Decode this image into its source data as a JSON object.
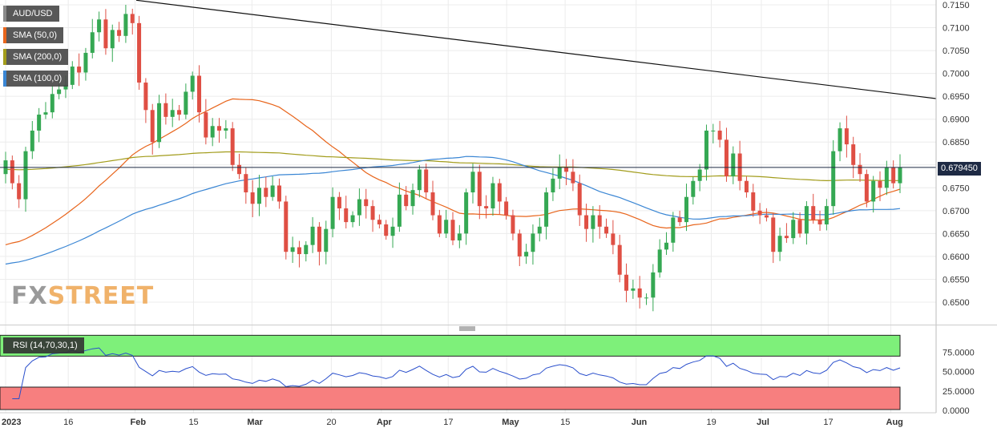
{
  "chart_data": [
    {
      "type": "candlestick",
      "pair": "AUD/USD",
      "ylim": [
        0.6455,
        0.7155
      ],
      "y_ticks": [
        "0.7150",
        "0.7100",
        "0.7050",
        "0.7000",
        "0.6950",
        "0.6900",
        "0.6850",
        "0.6800",
        "0.6750",
        "0.6700",
        "0.6650",
        "0.6600",
        "0.6550",
        "0.6500"
      ],
      "x_ticks": [
        {
          "label": "2023",
          "day": 0,
          "bold": true
        },
        {
          "label": "16",
          "day": 15,
          "bold": false
        },
        {
          "label": "Feb",
          "day": 31,
          "bold": true
        },
        {
          "label": "15",
          "day": 45,
          "bold": false
        },
        {
          "label": "Mar",
          "day": 59,
          "bold": true
        },
        {
          "label": "20",
          "day": 78,
          "bold": false
        },
        {
          "label": "Apr",
          "day": 90,
          "bold": true
        },
        {
          "label": "17",
          "day": 106,
          "bold": false
        },
        {
          "label": "May",
          "day": 120,
          "bold": true
        },
        {
          "label": "15",
          "day": 134,
          "bold": false
        },
        {
          "label": "Jun",
          "day": 151,
          "bold": true
        },
        {
          "label": "19",
          "day": 169,
          "bold": false
        },
        {
          "label": "Jul",
          "day": 181,
          "bold": true
        },
        {
          "label": "17",
          "day": 197,
          "bold": false
        },
        {
          "label": "Aug",
          "day": 212,
          "bold": true
        }
      ],
      "current_price": "0.679450",
      "current_price_value": 0.67945,
      "candles_close": [
        0.681,
        0.676,
        0.6725,
        0.683,
        0.6875,
        0.691,
        0.6915,
        0.6955,
        0.6965,
        0.6975,
        0.7015,
        0.7002,
        0.7045,
        0.709,
        0.7118,
        0.7055,
        0.7095,
        0.7082,
        0.713,
        0.711,
        0.698,
        0.692,
        0.685,
        0.6935,
        0.6905,
        0.692,
        0.691,
        0.696,
        0.6995,
        0.6915,
        0.686,
        0.6885,
        0.6875,
        0.688,
        0.68,
        0.678,
        0.674,
        0.6715,
        0.675,
        0.673,
        0.6755,
        0.672,
        0.661,
        0.662,
        0.6605,
        0.6625,
        0.6665,
        0.661,
        0.666,
        0.673,
        0.6705,
        0.6675,
        0.669,
        0.6725,
        0.671,
        0.668,
        0.667,
        0.6645,
        0.6665,
        0.6735,
        0.671,
        0.6745,
        0.679,
        0.674,
        0.669,
        0.665,
        0.668,
        0.6635,
        0.665,
        0.674,
        0.6785,
        0.671,
        0.6705,
        0.676,
        0.672,
        0.669,
        0.665,
        0.66,
        0.661,
        0.665,
        0.6665,
        0.674,
        0.677,
        0.6795,
        0.6785,
        0.676,
        0.669,
        0.666,
        0.669,
        0.6665,
        0.665,
        0.6625,
        0.656,
        0.6525,
        0.653,
        0.651,
        0.651,
        0.6565,
        0.6615,
        0.663,
        0.6685,
        0.6675,
        0.673,
        0.6765,
        0.679,
        0.6875,
        0.6875,
        0.6855,
        0.6775,
        0.6825,
        0.6765,
        0.674,
        0.67,
        0.669,
        0.6685,
        0.661,
        0.6645,
        0.664,
        0.668,
        0.665,
        0.671,
        0.668,
        0.667,
        0.671,
        0.683,
        0.688,
        0.6845,
        0.68,
        0.678,
        0.672,
        0.6765,
        0.675,
        0.6795,
        0.676,
        0.6795
      ]
    },
    {
      "type": "line",
      "legend": [
        {
          "label": "SMA (50,0)",
          "color": "#e8651c"
        },
        {
          "label": "SMA (200,0)",
          "color": "#a29c1b"
        },
        {
          "label": "SMA (100,0)",
          "color": "#3a86d4"
        }
      ],
      "trendline_color": "#111111",
      "up_color": "#35a853",
      "down_color": "#df4f44"
    },
    {
      "type": "line",
      "title": "RSI (14,70,30,1)",
      "ylim": [
        0,
        100
      ],
      "y_ticks": [
        "75.0000",
        "50.0000",
        "25.0000",
        "0.0000"
      ],
      "overbought": 70,
      "oversold": 30,
      "line_color": "#2a4fcc"
    }
  ],
  "watermark": {
    "part1": "FX",
    "part2": "STREET"
  }
}
